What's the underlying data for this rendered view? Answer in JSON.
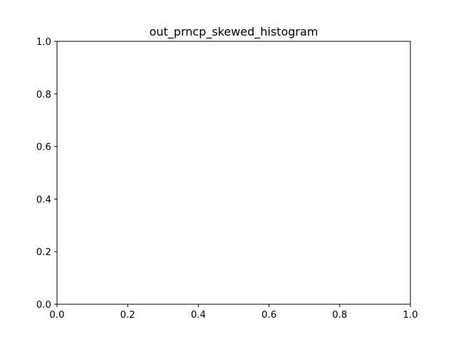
{
  "chart_data": {
    "type": "bar",
    "title": "out_prncp_skewed_histogram",
    "xlabel": "",
    "ylabel": "",
    "xlim": [
      0.0,
      1.0
    ],
    "ylim": [
      0.0,
      1.0
    ],
    "x_ticks": [
      "0.0",
      "0.2",
      "0.4",
      "0.6",
      "0.8",
      "1.0"
    ],
    "y_ticks": [
      "0.0",
      "0.2",
      "0.4",
      "0.6",
      "0.8",
      "1.0"
    ],
    "bins": [],
    "counts": [],
    "grid": false,
    "legend": "none"
  }
}
